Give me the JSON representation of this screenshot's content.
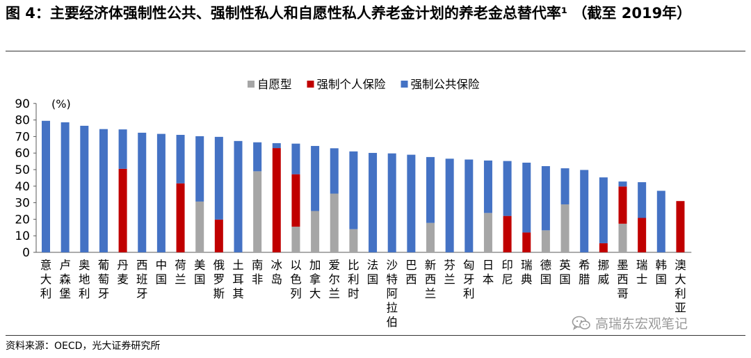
{
  "title": "图 4：主要经济体强制性公共、强制性私人和自愿性私人养老金计划的养老金总替代率¹ （截至 2019年）",
  "source": "资料来源：OECD，光大证券研究所",
  "watermark": "高瑞东宏观笔记",
  "watermark_icon": "wechat-icon",
  "colors": {
    "voluntary": "#a6a6a6",
    "mandatory_private": "#c00000",
    "mandatory_public": "#4472c4"
  },
  "chart_data": {
    "type": "bar",
    "stacked": true,
    "unit_label": "(%)",
    "ylim": [
      0,
      90
    ],
    "yticks": [
      0,
      10,
      20,
      30,
      40,
      50,
      60,
      70,
      80,
      90
    ],
    "legend_position": "top-center",
    "categories": [
      "意大利",
      "卢森堡",
      "奥地利",
      "葡萄牙",
      "丹麦",
      "西班牙",
      "中国",
      "荷兰",
      "美国",
      "俄罗斯",
      "土耳其",
      "南非",
      "冰岛",
      "以色列",
      "加拿大",
      "爱尔兰",
      "比利时",
      "法国",
      "沙特阿拉伯",
      "巴西",
      "新西兰",
      "芬兰",
      "匈牙利",
      "日本",
      "印尼",
      "瑞典",
      "德国",
      "英国",
      "希腊",
      "挪威",
      "墨西哥",
      "瑞士",
      "韩国",
      "澳大利亚"
    ],
    "series": [
      {
        "name": "自愿型",
        "color": "#a6a6a6",
        "values": [
          0,
          0,
          0,
          0,
          0,
          0,
          0,
          0,
          30.7,
          0,
          0,
          49,
          0,
          15.5,
          25,
          35.5,
          14,
          0,
          0,
          0,
          17.8,
          0,
          0,
          23.8,
          0,
          0,
          13.3,
          29,
          0,
          0,
          17.3,
          0,
          0,
          0
        ]
      },
      {
        "name": "强制个人保险",
        "color": "#c00000",
        "values": [
          0,
          0,
          0,
          0,
          50.5,
          0,
          0,
          41.7,
          0,
          19.8,
          0,
          0,
          63,
          31.7,
          0,
          0,
          0,
          0,
          0,
          0,
          0,
          0,
          0,
          0,
          22,
          12,
          0,
          0,
          0,
          5.5,
          22.5,
          20.8,
          0,
          31
        ]
      },
      {
        "name": "强制公共保险",
        "color": "#4472c4",
        "values": [
          79.5,
          78.6,
          76.5,
          74.5,
          23.8,
          72.3,
          71.6,
          29.3,
          39.5,
          50,
          67.3,
          17.5,
          3,
          18.5,
          39.3,
          27.4,
          47,
          60.1,
          59.8,
          59,
          39.8,
          56.6,
          56.1,
          31.7,
          33.2,
          42.2,
          38.8,
          21.8,
          49.8,
          39.8,
          3,
          21.6,
          37.2,
          0
        ]
      }
    ]
  }
}
